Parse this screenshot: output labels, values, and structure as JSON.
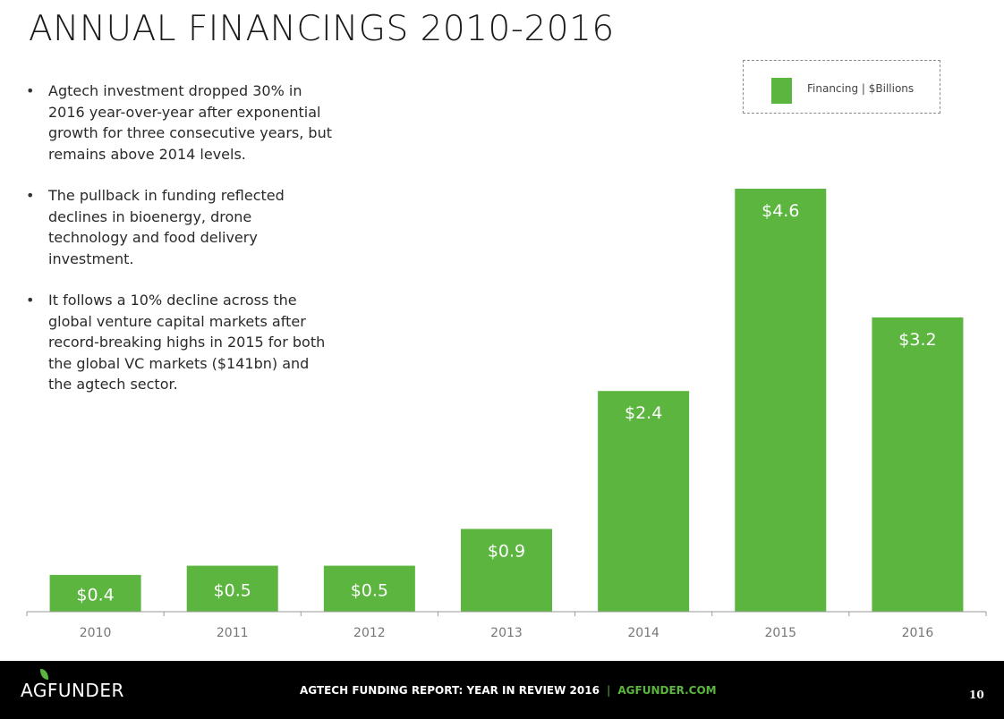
{
  "page": {
    "title": "ANNUAL FINANCINGS 2010-2016",
    "bullets": [
      "Agtech investment dropped 30% in 2016 year-over-year after exponential growth for three consecutive years, but remains above 2014 levels.",
      "The pullback in funding reflected declines in bioenergy, drone technology and food delivery investment.",
      "It follows a 10% decline across the global venture capital markets after record-breaking highs in 2015 for both the global VC markets ($141bn) and the agtech sector."
    ]
  },
  "legend": {
    "label": "Financing | $Billions"
  },
  "chart_data": {
    "type": "bar",
    "title": "ANNUAL FINANCINGS 2010-2016",
    "categories": [
      "2010",
      "2011",
      "2012",
      "2013",
      "2014",
      "2015",
      "2016"
    ],
    "series": [
      {
        "name": "Financing | $Billions",
        "values": [
          0.4,
          0.5,
          0.5,
          0.9,
          2.4,
          4.6,
          3.2
        ]
      }
    ],
    "data_labels": [
      "$0.4",
      "$0.5",
      "$0.5",
      "$0.9",
      "$2.4",
      "$4.6",
      "$3.2"
    ],
    "xlabel": "",
    "ylabel": "",
    "ylim": [
      0,
      4.6
    ],
    "grid": false,
    "legend_position": "top-right",
    "bar_color": "#5bb53e",
    "label_color": "#ffffff",
    "tick_color": "#777777"
  },
  "footer": {
    "logo": "AGFUNDER",
    "report": "AGTECH FUNDING REPORT: YEAR IN REVIEW 2016",
    "separator": "|",
    "link": "AGFUNDER.COM",
    "page_number": "10"
  }
}
